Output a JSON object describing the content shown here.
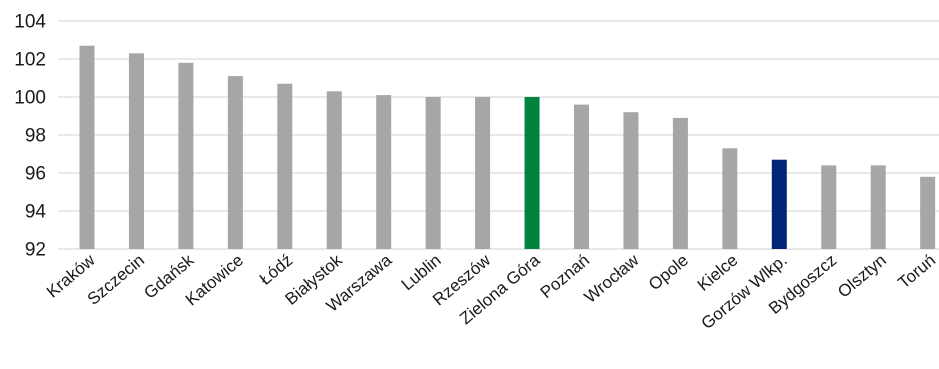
{
  "chart_data": {
    "type": "bar",
    "categories": [
      "Kraków",
      "Szczecin",
      "Gdańsk",
      "Katowice",
      "Łódź",
      "Białystok",
      "Warszawa",
      "Lublin",
      "Rzeszów",
      "Zielona Góra",
      "Poznań",
      "Wrocław",
      "Opole",
      "Kielce",
      "Gorzów Wlkp.",
      "Bydgoszcz",
      "Olsztyn",
      "Toruń"
    ],
    "values": [
      102.7,
      102.3,
      101.8,
      101.1,
      100.7,
      100.3,
      100.1,
      100.0,
      100.0,
      100.0,
      99.6,
      99.2,
      98.9,
      97.3,
      96.7,
      96.4,
      96.4,
      95.8
    ],
    "title": "",
    "xlabel": "",
    "ylabel": "",
    "ylim": [
      92,
      104
    ],
    "yticks": [
      "92",
      "94",
      "96",
      "98",
      "100",
      "102",
      "104"
    ],
    "grid": true,
    "legend": "none",
    "colors": {
      "default": "#a6a6a6",
      "Zielona Góra": "#00843d",
      "Gorzów Wlkp.": "#002776"
    }
  }
}
